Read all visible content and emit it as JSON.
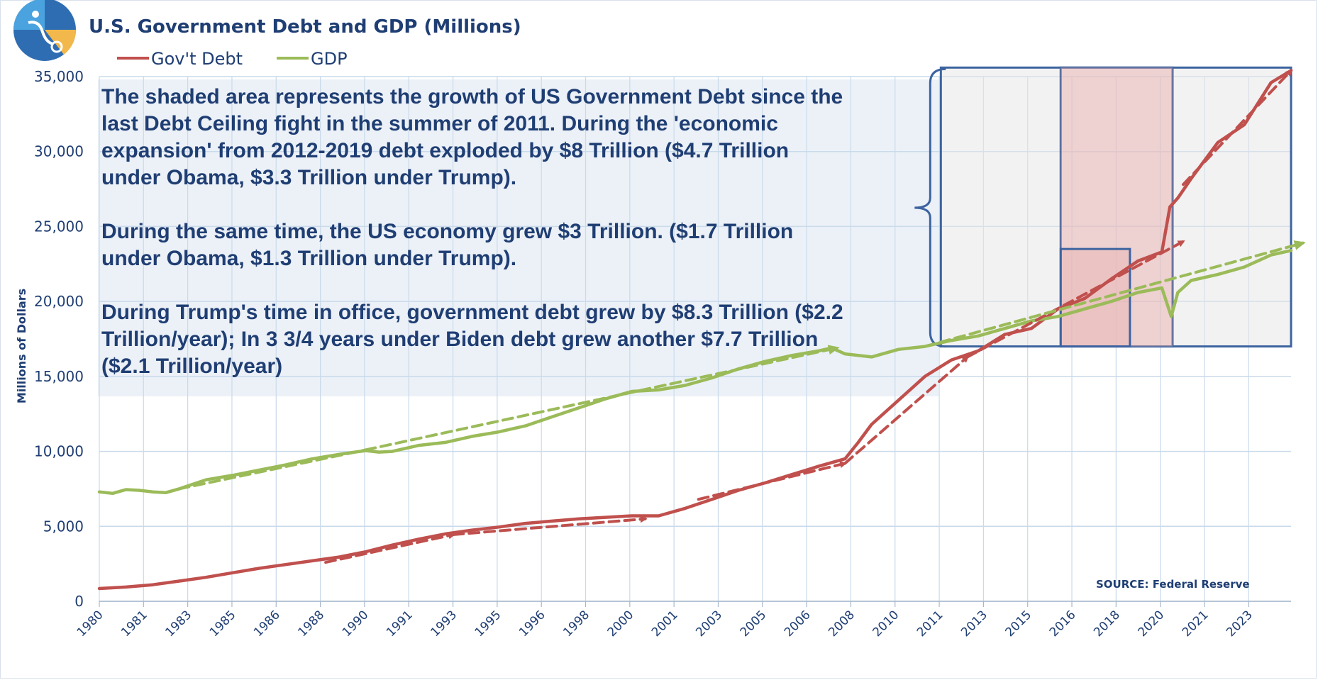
{
  "header": {
    "title": "U.S. Government Debt and GDP (Millions)"
  },
  "colors": {
    "debt": "#c0504d",
    "gdp": "#9bbb59",
    "text": "#1f3e73",
    "grid": "#c9daea",
    "annotation_bg": "#dfe7f3",
    "box_border": "#3d64a0"
  },
  "chart_data": {
    "type": "line",
    "ylabel": "Millions of Dollars",
    "ylim": [
      0,
      35000
    ],
    "yticks": [
      "0",
      "5,000",
      "10,000",
      "15,000",
      "20,000",
      "25,000",
      "30,000",
      "35,000"
    ],
    "yticks_values": [
      0,
      5000,
      10000,
      15000,
      20000,
      25000,
      30000,
      35000
    ],
    "xlim": [
      1980,
      2024.75
    ],
    "x_tick_labels": [
      "1980",
      "1981",
      "1983",
      "1985",
      "1986",
      "1988",
      "1990",
      "1991",
      "1993",
      "1995",
      "1996",
      "1998",
      "2000",
      "2001",
      "2003",
      "2005",
      "2006",
      "2008",
      "2010",
      "2011",
      "2013",
      "2015",
      "2016",
      "2018",
      "2020",
      "2021",
      "2023"
    ],
    "x_tick_positions": [
      1980,
      1981.66,
      1983.32,
      1984.98,
      1986.64,
      1988.3,
      1989.96,
      1991.62,
      1993.28,
      1994.94,
      1996.6,
      1998.26,
      1999.92,
      2001.58,
      2003.24,
      2004.9,
      2006.56,
      2008.22,
      2009.88,
      2011.54,
      2013.2,
      2014.86,
      2016.52,
      2018.18,
      2019.84,
      2021.5,
      2023.16
    ],
    "legend": "top-left",
    "grid": true,
    "series": [
      {
        "name": "Gov't Debt",
        "color": "#c0504d",
        "x": [
          1980,
          1981,
          1982,
          1983,
          1984,
          1985,
          1986,
          1987,
          1988,
          1989,
          1990,
          1991,
          1992,
          1993,
          1994,
          1995,
          1996,
          1997,
          1998,
          1999,
          2000,
          2001,
          2002,
          2003,
          2004,
          2005,
          2006,
          2007,
          2008,
          2008.5,
          2009,
          2010,
          2011,
          2012,
          2013,
          2014,
          2015,
          2016,
          2017,
          2018,
          2019,
          2019.9,
          2020.2,
          2020.5,
          2021,
          2022,
          2023,
          2024,
          2024.75
        ],
        "values": [
          850,
          950,
          1100,
          1350,
          1600,
          1900,
          2200,
          2450,
          2700,
          2950,
          3300,
          3750,
          4150,
          4500,
          4750,
          4950,
          5200,
          5350,
          5500,
          5600,
          5700,
          5700,
          6200,
          6800,
          7400,
          7900,
          8450,
          9000,
          9500,
          10600,
          11800,
          13400,
          15000,
          16100,
          16700,
          17800,
          18200,
          19500,
          20200,
          21500,
          22700,
          23300,
          26300,
          26900,
          28200,
          30600,
          31800,
          34600,
          35400
        ]
      },
      {
        "name": "GDP",
        "color": "#9bbb59",
        "x": [
          1980,
          1980.5,
          1981,
          1981.5,
          1982,
          1982.5,
          1983,
          1984,
          1985,
          1986,
          1987,
          1988,
          1989,
          1990,
          1990.5,
          1991,
          1992,
          1993,
          1994,
          1995,
          1996,
          1997,
          1998,
          1999,
          2000,
          2001,
          2002,
          2003,
          2004,
          2005,
          2006,
          2007,
          2007.5,
          2008,
          2009,
          2010,
          2011,
          2012,
          2013,
          2014,
          2015,
          2016,
          2017,
          2018,
          2019,
          2019.9,
          2020.25,
          2020.5,
          2021,
          2022,
          2023,
          2024,
          2024.75
        ],
        "values": [
          7300,
          7200,
          7450,
          7400,
          7300,
          7250,
          7500,
          8100,
          8400,
          8750,
          9100,
          9500,
          9800,
          10050,
          9950,
          10000,
          10400,
          10600,
          11000,
          11300,
          11700,
          12300,
          12900,
          13500,
          14000,
          14100,
          14400,
          14900,
          15500,
          16000,
          16400,
          16700,
          16900,
          16500,
          16300,
          16800,
          17000,
          17400,
          17700,
          18200,
          18700,
          19000,
          19500,
          20000,
          20600,
          20900,
          19000,
          20600,
          21400,
          21800,
          22300,
          23100,
          23400
        ]
      }
    ],
    "trend_lines": [
      {
        "series": "Gov't Debt",
        "x": [
          1988.5,
          1993.3
        ],
        "values": [
          2600,
          4450
        ],
        "arrow": true
      },
      {
        "series": "Gov't Debt",
        "x": [
          1993.3,
          2000.5
        ],
        "values": [
          4450,
          5500
        ],
        "arrow": true
      },
      {
        "series": "Gov't Debt",
        "x": [
          2002.5,
          2008
        ],
        "values": [
          6800,
          9200
        ],
        "arrow": true
      },
      {
        "series": "Gov't Debt",
        "x": [
          2008,
          2012.6
        ],
        "values": [
          9200,
          16300
        ],
        "arrow": true
      },
      {
        "series": "Gov't Debt",
        "x": [
          2012.6,
          2020.7
        ],
        "values": [
          16300,
          24000
        ],
        "arrow": true
      },
      {
        "series": "Gov't Debt",
        "x": [
          2020.7,
          2024.75
        ],
        "values": [
          27800,
          35400
        ],
        "arrow": true
      },
      {
        "series": "GDP",
        "x": [
          1983,
          1990
        ],
        "values": [
          7500,
          10100
        ],
        "arrow": false
      },
      {
        "series": "GDP",
        "x": [
          1990,
          2007.7
        ],
        "values": [
          10100,
          16900
        ],
        "arrow": true
      },
      {
        "series": "GDP",
        "x": [
          2011,
          2025.2
        ],
        "values": [
          17000,
          23900
        ],
        "arrow": true
      }
    ],
    "annotation": {
      "lines": [
        "The shaded area represents the growth of US Government Debt since the",
        "last Debt Ceiling fight in the summer of 2011. During the 'economic",
        "expansion' from 2012-2019 debt exploded by $8 Trillion ($4.7 Trillion",
        "under Obama, $3.3 Trillion under Trump).",
        "",
        "During the same time, the US economy grew $3 Trillion. ($1.7 Trillion",
        "under Obama, $1.3 Trillion under Trump).",
        "",
        "During Trump's time in office, government debt grew by $8.3 Trillion ($2.2",
        "Trillion/year); In 3 3/4 years under Biden debt grew another $7.7 Trillion",
        "($2.1 Trillion/year)"
      ]
    },
    "shaded_regions": [
      {
        "kind": "gray-box",
        "x": [
          2011.6,
          2024.75
        ],
        "y": [
          17000,
          35600
        ]
      },
      {
        "kind": "inner-box",
        "x": [
          2016.1,
          2020.3
        ],
        "y": [
          17000,
          35600
        ]
      },
      {
        "kind": "pink-fill",
        "x": [
          2016.1,
          2020.3
        ],
        "y": [
          17000,
          35600
        ]
      },
      {
        "kind": "small-box",
        "x": [
          2016.1,
          2018.7
        ],
        "y": [
          17000,
          23500
        ]
      },
      {
        "kind": "brace",
        "x": [
          2011.2
        ],
        "y": [
          17000,
          35500
        ]
      }
    ],
    "source": "SOURCE:  Federal Reserve"
  }
}
